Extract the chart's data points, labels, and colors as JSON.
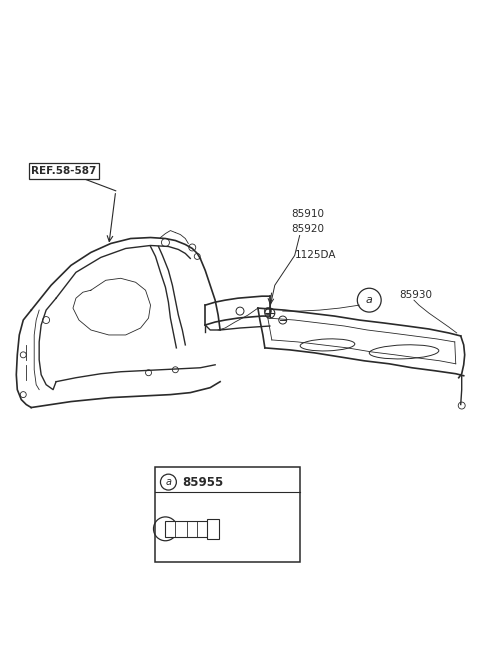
{
  "bg_color": "#ffffff",
  "line_color": "#2a2a2a",
  "labels": {
    "ref": "REF.58-587",
    "p85910": "85910",
    "p85920": "85920",
    "p1125DA": "1125DA",
    "p85930": "85930",
    "p85955": "85955",
    "circle_a": "a"
  }
}
